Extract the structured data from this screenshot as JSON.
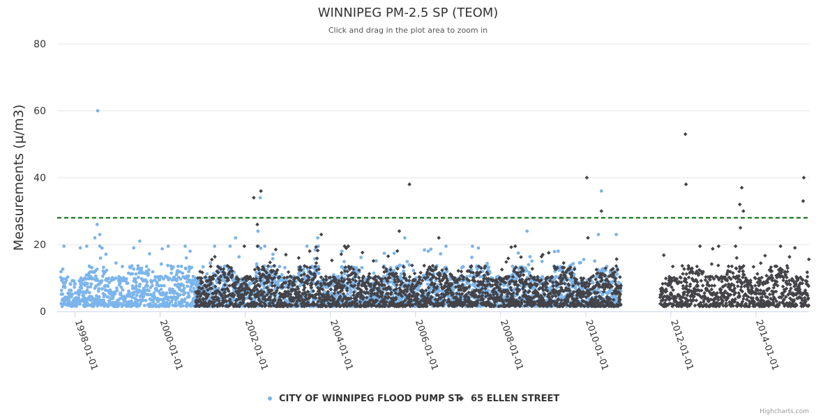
{
  "chart_data": {
    "type": "scatter",
    "title": "WINNIPEG PM-2.5 SP (TEOM)",
    "subtitle": "Click and drag in the plot area to zoom in",
    "ylabel": "Measurements (µ/m3)",
    "xlabel": "",
    "ylim": [
      0,
      80
    ],
    "y_ticks": [
      0,
      20,
      40,
      60,
      80
    ],
    "x_ticks": [
      "1998-01-01",
      "2000-01-01",
      "2002-01-01",
      "2004-01-01",
      "2006-01-01",
      "2008-01-01",
      "2010-01-01",
      "2012-01-01",
      "2014-01-01"
    ],
    "x_range": [
      "1997-08-01",
      "2015-04-01"
    ],
    "threshold": {
      "value": 28,
      "color": "#006400",
      "style": "dashed"
    },
    "series": [
      {
        "name": "CITY OF WINNIPEG FLOOD PUMP ST",
        "marker": "circle",
        "color": "#7cb5ec",
        "date_range": [
          "1997-09-01",
          "2010-10-31"
        ],
        "typical_range": [
          1,
          12
        ],
        "peaks": [
          {
            "x": "1998-07-15",
            "y": 60
          },
          {
            "x": "1998-07-10",
            "y": 26
          },
          {
            "x": "1998-08-01",
            "y": 23
          },
          {
            "x": "1998-06-20",
            "y": 22
          },
          {
            "x": "1999-07-10",
            "y": 21
          },
          {
            "x": "1998-02-15",
            "y": 19
          },
          {
            "x": "1999-05-20",
            "y": 19
          },
          {
            "x": "2000-09-15",
            "y": 18
          },
          {
            "x": "2001-10-10",
            "y": 22
          },
          {
            "x": "2002-05-10",
            "y": 34
          },
          {
            "x": "2002-04-20",
            "y": 24
          },
          {
            "x": "2003-09-15",
            "y": 22
          },
          {
            "x": "2004-04-10",
            "y": 18
          },
          {
            "x": "2005-10-01",
            "y": 22
          },
          {
            "x": "2006-04-20",
            "y": 18
          },
          {
            "x": "2008-08-15",
            "y": 24
          },
          {
            "x": "2009-05-10",
            "y": 18
          },
          {
            "x": "2010-05-15",
            "y": 36
          },
          {
            "x": "2010-04-20",
            "y": 23
          },
          {
            "x": "2010-09-20",
            "y": 23
          }
        ]
      },
      {
        "name": "65 ELLEN STREET",
        "marker": "diamond",
        "color": "#434348",
        "date_ranges": [
          [
            "2000-11-01",
            "2010-10-31"
          ],
          [
            "2011-10-01",
            "2015-03-31"
          ]
        ],
        "typical_range": [
          1,
          12
        ],
        "peaks": [
          {
            "x": "2002-03-15",
            "y": 34
          },
          {
            "x": "2002-05-15",
            "y": 36
          },
          {
            "x": "2002-04-15",
            "y": 26
          },
          {
            "x": "2003-10-15",
            "y": 23
          },
          {
            "x": "2005-08-15",
            "y": 24
          },
          {
            "x": "2005-11-10",
            "y": 38
          },
          {
            "x": "2006-07-20",
            "y": 22
          },
          {
            "x": "2010-01-10",
            "y": 40
          },
          {
            "x": "2010-01-20",
            "y": 22
          },
          {
            "x": "2010-05-15",
            "y": 30
          },
          {
            "x": "2012-05-05",
            "y": 53
          },
          {
            "x": "2012-05-10",
            "y": 38
          },
          {
            "x": "2013-09-01",
            "y": 37
          },
          {
            "x": "2013-08-15",
            "y": 32
          },
          {
            "x": "2013-09-15",
            "y": 30
          },
          {
            "x": "2013-08-20",
            "y": 25
          },
          {
            "x": "2015-02-15",
            "y": 40
          },
          {
            "x": "2015-02-10",
            "y": 33
          },
          {
            "x": "2014-12-01",
            "y": 19
          }
        ]
      }
    ],
    "legend_position": "bottom-center"
  },
  "credits": "Highcharts.com"
}
